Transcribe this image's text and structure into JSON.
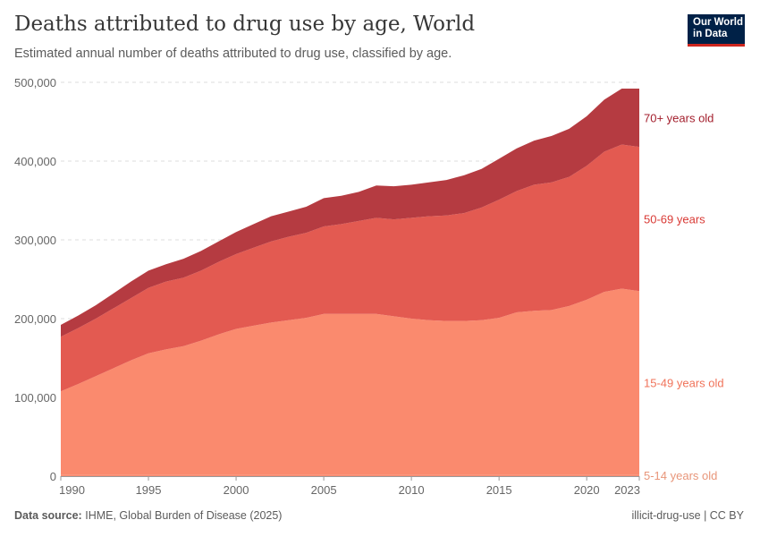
{
  "header": {
    "title": "Deaths attributed to drug use by age, World",
    "subtitle": "Estimated annual number of deaths attributed to drug use, classified by age.",
    "logo_text": "Our World in Data"
  },
  "footer": {
    "source_label": "Data source:",
    "source_text": "IHME, Global Burden of Disease (2025)",
    "right_text": "illicit-drug-use | CC BY"
  },
  "chart_data": {
    "type": "area",
    "stacked": true,
    "title": "Deaths attributed to drug use by age, World",
    "xlabel": "",
    "ylabel": "",
    "xlim": [
      1990,
      2023
    ],
    "ylim": [
      0,
      500000
    ],
    "x_ticks": [
      "1990",
      "1995",
      "2000",
      "2005",
      "2010",
      "2015",
      "2020",
      "2023"
    ],
    "y_ticks": [
      "0",
      "100,000",
      "200,000",
      "300,000",
      "400,000",
      "500,000"
    ],
    "grid": "horizontal dashed",
    "legend": "right (inline labels)",
    "x": [
      1990,
      1991,
      1992,
      1993,
      1994,
      1995,
      1996,
      1997,
      1998,
      1999,
      2000,
      2001,
      2002,
      2003,
      2004,
      2005,
      2006,
      2007,
      2008,
      2009,
      2010,
      2011,
      2012,
      2013,
      2014,
      2015,
      2016,
      2017,
      2018,
      2019,
      2020,
      2021,
      2022,
      2023
    ],
    "series": [
      {
        "name": "5-14 years old",
        "color": "#fa8a6e",
        "label_color": "#e8967a",
        "values": [
          2000,
          2000,
          2000,
          2000,
          2000,
          2000,
          2000,
          2000,
          2000,
          2000,
          2000,
          2000,
          2000,
          2000,
          2000,
          2000,
          2000,
          2000,
          2000,
          2000,
          2000,
          2000,
          2000,
          2000,
          2000,
          2000,
          2000,
          2000,
          2000,
          2000,
          2000,
          2000,
          2000,
          2000
        ]
      },
      {
        "name": "15-49 years old",
        "color": "#fa8a6e",
        "label_color": "#f0735a",
        "values": [
          105600,
          115000,
          125000,
          135000,
          145000,
          154000,
          159000,
          163000,
          170000,
          178000,
          185000,
          189000,
          193000,
          196000,
          199000,
          204000,
          204000,
          204000,
          204000,
          201000,
          198000,
          196000,
          195000,
          195000,
          196000,
          199000,
          206000,
          208000,
          209000,
          214000,
          222000,
          232000,
          236000,
          233000
        ]
      },
      {
        "name": "50-69 years",
        "color": "#e35a51",
        "label_color": "#d93a35",
        "values": [
          69400,
          71000,
          73000,
          76000,
          79000,
          83000,
          86000,
          87000,
          89000,
          92000,
          95000,
          99000,
          103000,
          106000,
          108000,
          111000,
          114000,
          118000,
          122000,
          123000,
          128000,
          132000,
          134000,
          137000,
          143000,
          150000,
          154000,
          160000,
          162000,
          164000,
          170000,
          178000,
          183000,
          183000
        ]
      },
      {
        "name": "70+ years old",
        "color": "#b53b41",
        "label_color": "#a31e2c",
        "values": [
          15000,
          16000,
          17000,
          19000,
          21000,
          22000,
          22000,
          24000,
          25000,
          26000,
          28000,
          30000,
          32000,
          32000,
          33000,
          36000,
          36000,
          37000,
          41000,
          42000,
          42000,
          43000,
          45000,
          48000,
          49000,
          52000,
          54000,
          56000,
          59000,
          61000,
          63000,
          66000,
          71000,
          74000
        ]
      }
    ]
  }
}
